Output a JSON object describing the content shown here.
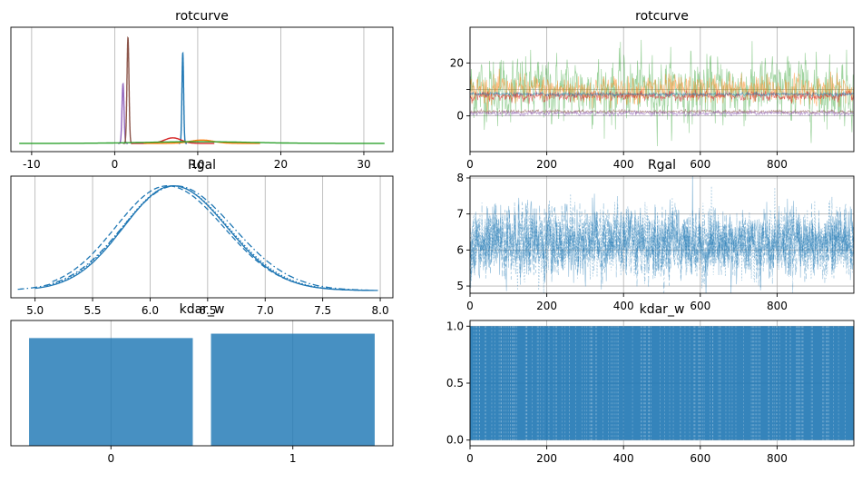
{
  "chart_data": [
    {
      "panel": "posterior-density",
      "type": "line",
      "title": "rotcurve",
      "xlim": [
        -12.5,
        33.5
      ],
      "xticks": [
        -10,
        0,
        10,
        20,
        30
      ],
      "yticks_shown": false,
      "grid": "x",
      "series": [
        {
          "color": "#9467bd",
          "peaks": [
            {
              "x": 1.0,
              "height": 0.54,
              "sd": 0.12
            }
          ]
        },
        {
          "color": "#8c564b",
          "peaks": [
            {
              "x": 1.6,
              "height": 0.96,
              "sd": 0.12
            }
          ]
        },
        {
          "color": "#1f77b4",
          "peaks": [
            {
              "x": 8.2,
              "height": 0.82,
              "sd": 0.1
            }
          ]
        },
        {
          "color": "#d62728",
          "peaks": [
            {
              "x": 7.0,
              "height": 0.05,
              "sd": 1.0
            }
          ]
        },
        {
          "color": "#ff7f0e",
          "peaks": [
            {
              "x": 10.5,
              "height": 0.03,
              "sd": 1.4
            }
          ]
        },
        {
          "color": "#2ca02c",
          "peaks": [
            {
              "x": 10.0,
              "height": 0.015,
              "sd": 6.0
            }
          ]
        }
      ],
      "x_range": [
        -11.5,
        32.5
      ]
    },
    {
      "panel": "trace",
      "type": "line",
      "title": "rotcurve",
      "xlim": [
        0,
        1000
      ],
      "ylim": [
        -13.5,
        33.5
      ],
      "xticks": [
        0,
        200,
        400,
        600,
        800
      ],
      "yticks": [
        0,
        10,
        20
      ],
      "ytick_labels": [
        "0",
        "",
        "20"
      ],
      "grid": "both",
      "draws": 1000,
      "series": [
        {
          "color": "#2ca02c",
          "mean": 10,
          "spread": 6,
          "min": -12,
          "max": 32,
          "opacity": 0.45
        },
        {
          "color": "#ff7f0e",
          "mean": 10,
          "spread": 2.5,
          "opacity": 0.5
        },
        {
          "color": "#d62728",
          "mean": 7.5,
          "spread": 0.8,
          "opacity": 0.6
        },
        {
          "color": "#1f77b4",
          "mean": 8.2,
          "spread": 0.3,
          "opacity": 0.6
        },
        {
          "color": "#8c564b",
          "mean": 1.6,
          "spread": 0.3,
          "opacity": 0.6
        },
        {
          "color": "#9467bd",
          "mean": 1.0,
          "spread": 0.4,
          "opacity": 0.6
        }
      ]
    },
    {
      "panel": "posterior-density",
      "type": "line",
      "title": "Rgal",
      "xlim": [
        4.79,
        8.11
      ],
      "xticks": [
        5.0,
        5.5,
        6.0,
        6.5,
        7.0,
        7.5,
        8.0
      ],
      "xtick_labels": [
        "5.0",
        "5.5",
        "6.0",
        "6.5",
        "7.0",
        "7.5",
        "8.0"
      ],
      "yticks_shown": false,
      "grid": "x",
      "color": "#1f77b4",
      "series": [
        {
          "style": "solid",
          "mean": 6.2,
          "sd": 0.43,
          "x_range": [
            5.0,
            7.98
          ]
        },
        {
          "style": "dashed",
          "mean": 6.15,
          "sd": 0.45,
          "x_range": [
            5.15,
            7.9
          ]
        },
        {
          "style": "dashdot",
          "mean": 6.22,
          "sd": 0.46,
          "x_range": [
            4.85,
            7.9
          ]
        },
        {
          "style": "dotted",
          "mean": 6.2,
          "sd": 0.44,
          "x_range": [
            5.1,
            7.9
          ]
        }
      ]
    },
    {
      "panel": "trace",
      "type": "line",
      "title": "Rgal",
      "xlim": [
        0,
        1000
      ],
      "ylim": [
        4.8,
        8.05
      ],
      "xticks": [
        0,
        200,
        400,
        600,
        800
      ],
      "yticks": [
        5,
        6,
        7,
        8
      ],
      "grid": "both",
      "draws": 1000,
      "color": "#1f77b4",
      "series": [
        {
          "style": "solid",
          "mean": 6.2,
          "spread": 0.45
        },
        {
          "style": "dashed",
          "mean": 6.2,
          "spread": 0.45
        },
        {
          "style": "dashdot",
          "mean": 6.2,
          "spread": 0.45
        },
        {
          "style": "dotted",
          "mean": 6.2,
          "spread": 0.45
        }
      ]
    },
    {
      "panel": "histogram",
      "type": "bar",
      "title": "kdar_w",
      "categories": [
        "0",
        "1"
      ],
      "values": [
        0.49,
        0.51
      ],
      "ylim": [
        0,
        0.57
      ],
      "yticks_shown": false,
      "grid": "x",
      "color": "#1f77b4"
    },
    {
      "panel": "trace",
      "type": "line",
      "title": "kdar_w",
      "xlim": [
        0,
        1000
      ],
      "ylim": [
        -0.05,
        1.05
      ],
      "xticks": [
        0,
        200,
        400,
        600,
        800
      ],
      "yticks": [
        0.0,
        0.5,
        1.0
      ],
      "ytick_labels": [
        "0.0",
        "0.5",
        "1.0"
      ],
      "grid": "both",
      "draws": 1000,
      "color": "#1f77b4",
      "values": [
        0,
        1
      ]
    }
  ]
}
